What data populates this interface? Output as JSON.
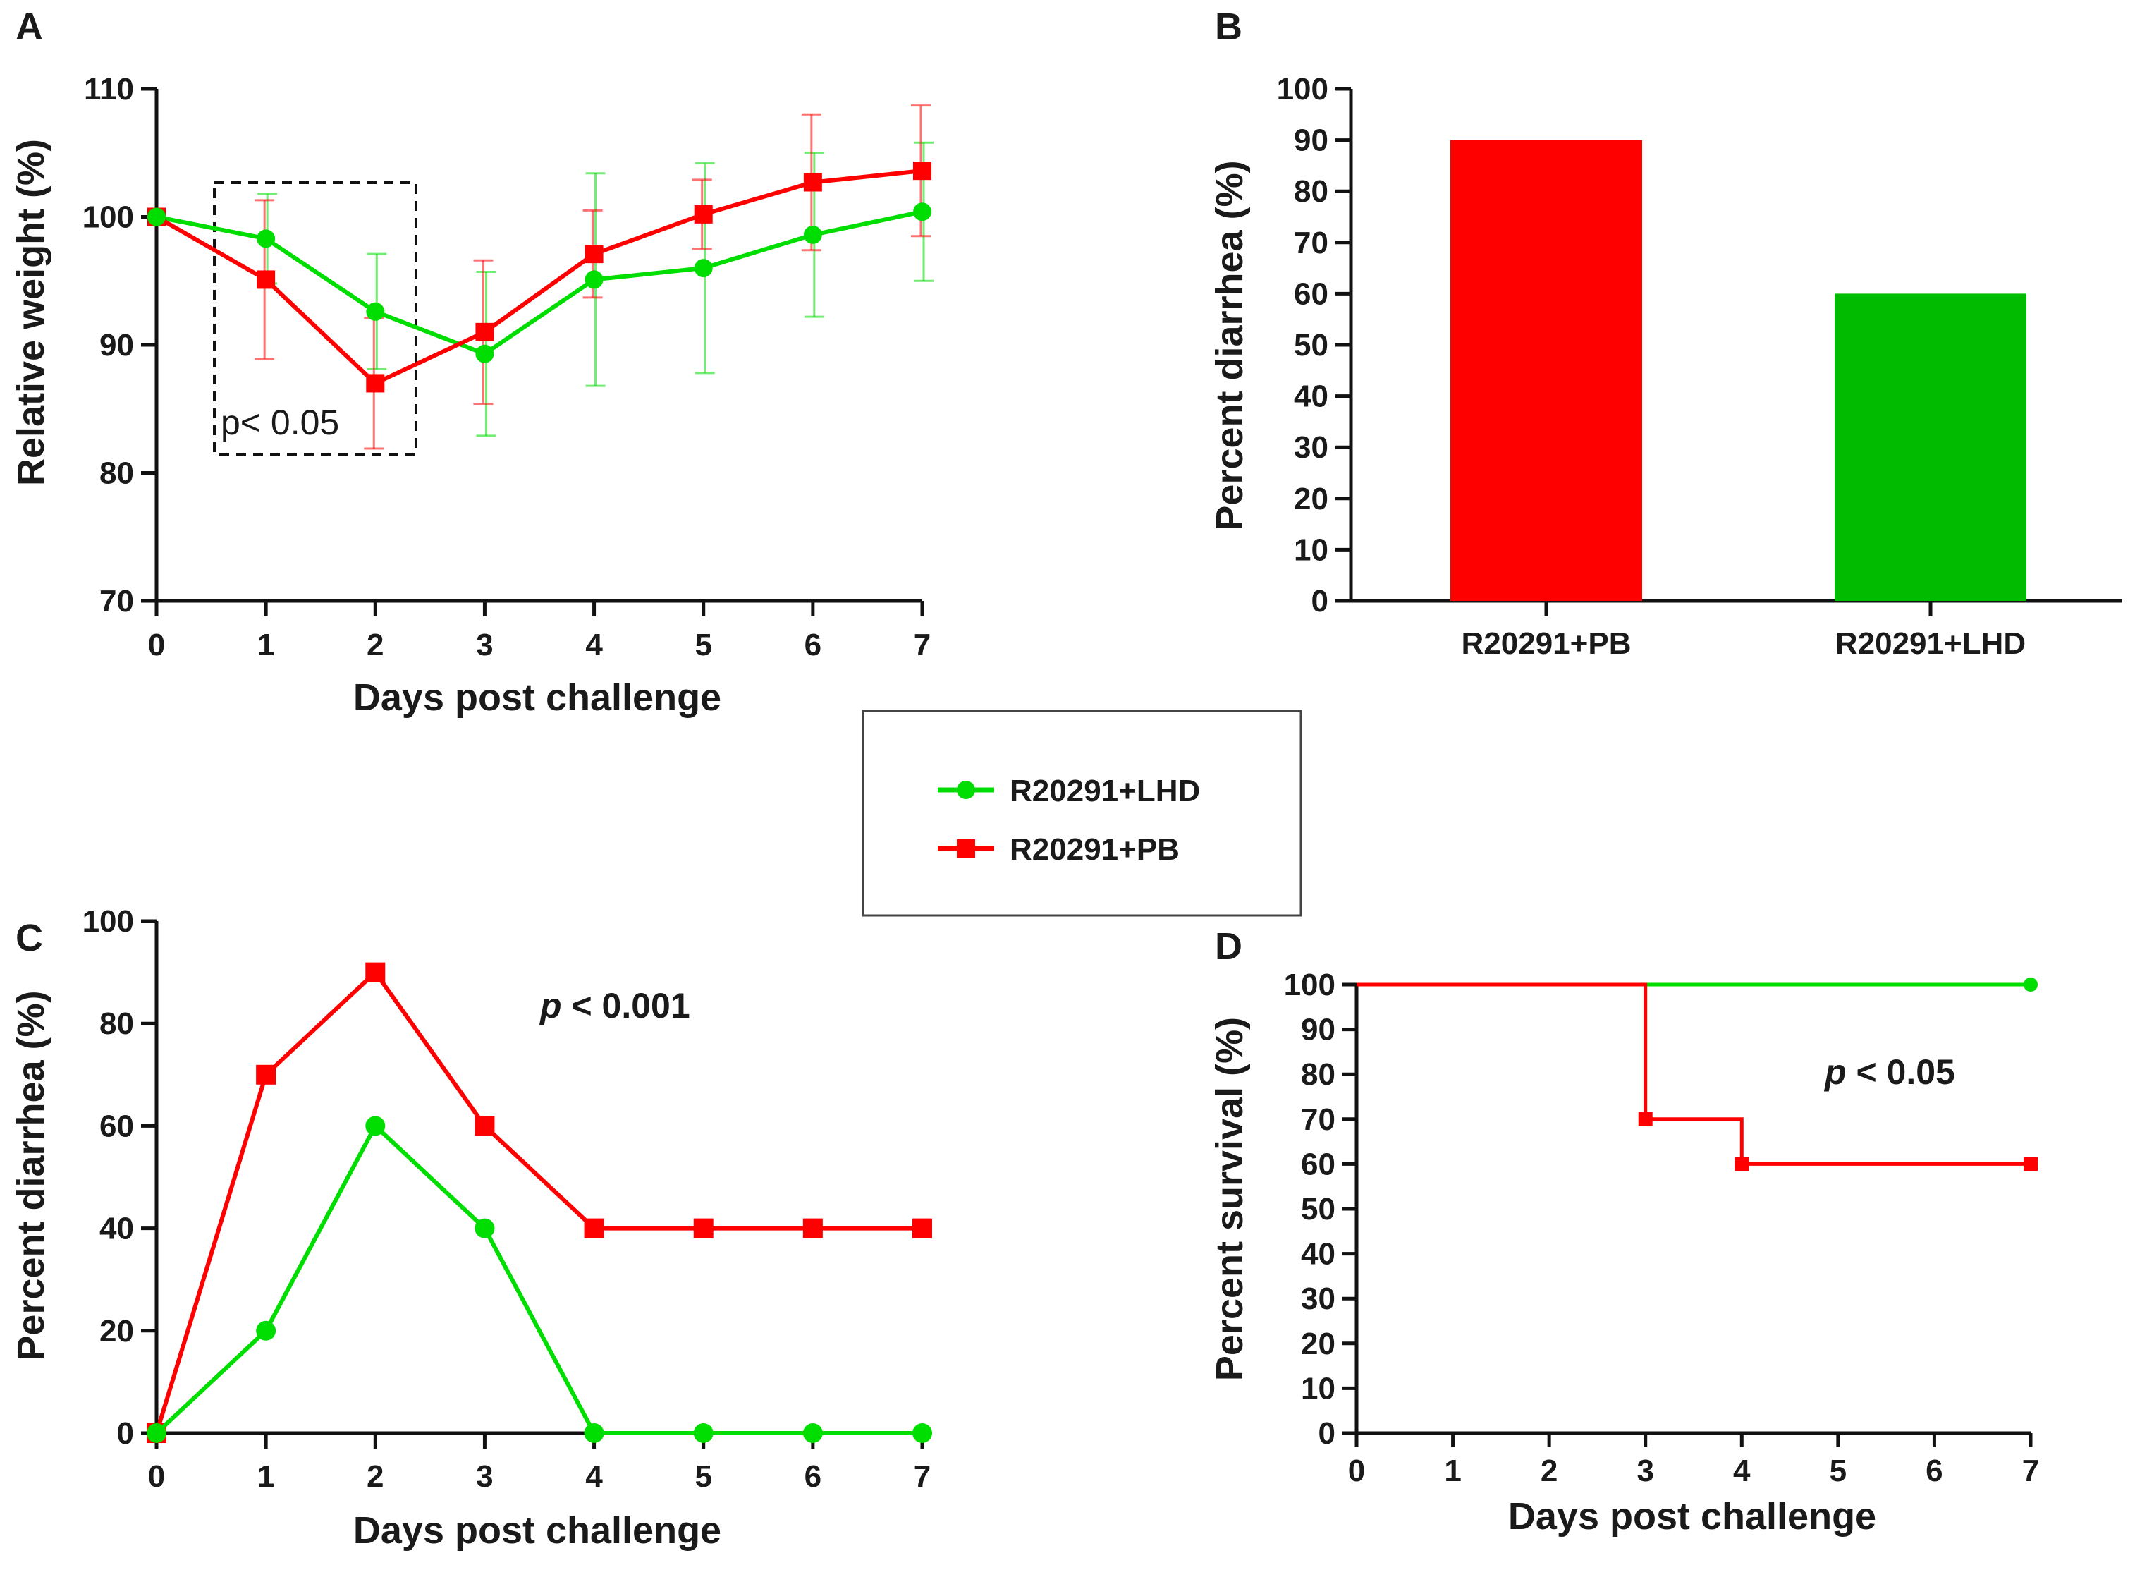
{
  "colors": {
    "pb": "#ff0000",
    "lhd": "#00dd00",
    "lhd_bar": "#00bb00",
    "axis": "#111111"
  },
  "legend": {
    "items": [
      {
        "label": "R20291+LHD",
        "color": "#00dd00",
        "marker": "circle"
      },
      {
        "label": "R20291+PB",
        "color": "#ff0000",
        "marker": "square"
      }
    ]
  },
  "chart_data": [
    {
      "id": "A",
      "panel_letter": "A",
      "type": "line",
      "xlabel": "Days post challenge",
      "ylabel": "Relative weight (%)",
      "x": [
        0,
        1,
        2,
        3,
        4,
        5,
        6,
        7
      ],
      "xlim": [
        0,
        7
      ],
      "ylim": [
        70,
        110
      ],
      "yticks": [
        70,
        80,
        90,
        100,
        110
      ],
      "series": [
        {
          "name": "R20291+LHD",
          "color": "#00dd00",
          "marker": "circle",
          "values": [
            100,
            98.3,
            92.6,
            89.3,
            95.1,
            96.0,
            98.6,
            100.4
          ],
          "error": [
            0,
            3.5,
            4.5,
            6.4,
            8.3,
            8.2,
            6.4,
            5.4
          ]
        },
        {
          "name": "R20291+PB",
          "color": "#ff0000",
          "marker": "square",
          "values": [
            100,
            95.1,
            87.0,
            91.0,
            97.1,
            100.2,
            102.7,
            103.6
          ],
          "error": [
            0,
            6.2,
            5.1,
            5.6,
            3.4,
            2.7,
            5.3,
            5.1
          ]
        }
      ],
      "annotation": {
        "text": "p< 0.05",
        "box_x_range": [
          0.55,
          2.4
        ]
      }
    },
    {
      "id": "B",
      "panel_letter": "B",
      "type": "bar",
      "ylabel": "Percent diarrhea (%)",
      "categories": [
        "R20291+PB",
        "R20291+LHD"
      ],
      "values": [
        90,
        60
      ],
      "bar_colors": [
        "#ff0000",
        "#00bb00"
      ],
      "ylim": [
        0,
        100
      ],
      "yticks": [
        0,
        10,
        20,
        30,
        40,
        50,
        60,
        70,
        80,
        90,
        100
      ]
    },
    {
      "id": "C",
      "panel_letter": "C",
      "type": "line",
      "xlabel": "Days post challenge",
      "ylabel": "Percent diarrhea (%)",
      "x": [
        0,
        1,
        2,
        3,
        4,
        5,
        6,
        7
      ],
      "xlim": [
        0,
        7
      ],
      "ylim": [
        0,
        100
      ],
      "yticks": [
        0,
        20,
        40,
        60,
        80,
        100
      ],
      "series": [
        {
          "name": "R20291+PB",
          "color": "#ff0000",
          "marker": "square",
          "values": [
            0,
            70,
            90,
            60,
            40,
            40,
            40,
            40
          ]
        },
        {
          "name": "R20291+LHD",
          "color": "#00dd00",
          "marker": "circle",
          "values": [
            0,
            20,
            60,
            40,
            0,
            0,
            0,
            0
          ]
        }
      ],
      "annotation": {
        "p": "p",
        "text": " < 0.001"
      }
    },
    {
      "id": "D",
      "panel_letter": "D",
      "type": "line",
      "subtype": "survival-step",
      "xlabel": "Days post challenge",
      "ylabel": "Percent survival (%)",
      "xlim": [
        0,
        7
      ],
      "xticks": [
        0,
        1,
        2,
        3,
        4,
        5,
        6,
        7
      ],
      "ylim": [
        0,
        100
      ],
      "yticks": [
        0,
        10,
        20,
        30,
        40,
        50,
        60,
        70,
        80,
        90,
        100
      ],
      "series": [
        {
          "name": "R20291+LHD",
          "color": "#00dd00",
          "marker": "circle",
          "x": [
            0,
            7
          ],
          "values": [
            100,
            100
          ],
          "markers_at": [
            7
          ]
        },
        {
          "name": "R20291+PB",
          "color": "#ff0000",
          "marker": "square",
          "x": [
            0,
            3,
            4,
            7
          ],
          "values": [
            100,
            70,
            60,
            60
          ],
          "markers_at": [
            3,
            4,
            7
          ]
        }
      ],
      "annotation": {
        "p": "p",
        "text": " < 0.05"
      }
    }
  ]
}
